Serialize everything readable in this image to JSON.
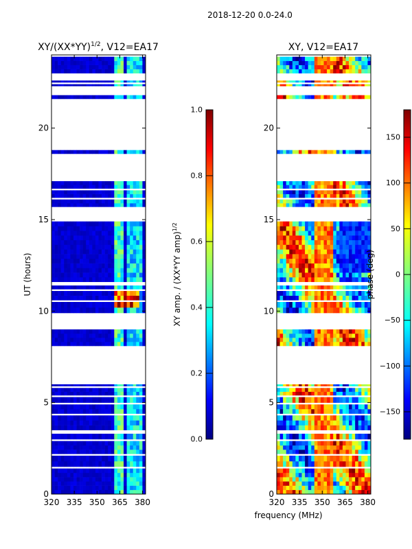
{
  "suptitle": "2018-12-20 0.0-24.0",
  "xlabel_shared": "frequency (MHz)",
  "chart_data": [
    {
      "type": "heatmap",
      "title_main": "XY/(XX*YY)",
      "title_sup": "1/2",
      "title_tail": ", V12=EA17",
      "xlabel": "frequency (MHz)",
      "ylabel": "UT (hours)",
      "xlim": [
        320,
        382
      ],
      "ylim": [
        0,
        24
      ],
      "xticks": [
        320,
        335,
        350,
        365,
        380
      ],
      "yticks": [
        0,
        5,
        10,
        15,
        20
      ],
      "colorbar": {
        "label_main": "XY amp. / (XX*YY amp)",
        "label_sup": "1/2",
        "range": [
          0.0,
          1.0
        ],
        "ticks": [
          "0.0",
          "0.2",
          "0.4",
          "0.6",
          "0.8",
          "1.0"
        ]
      },
      "data_summary": "Mostly near 0 (dark blue); elevated 0.3-0.5 in bands near 362-368 and 370-380 MHz; peaks 0.8-1.0 around 10.5-11.0 UT"
    },
    {
      "type": "heatmap",
      "title_main": "XY, V12=EA17",
      "xlabel": "frequency (MHz)",
      "ylabel": "",
      "xlim": [
        320,
        382
      ],
      "ylim": [
        0,
        24
      ],
      "xticks": [
        320,
        335,
        350,
        365,
        380
      ],
      "yticks": [
        0,
        5,
        10,
        15,
        20
      ],
      "colorbar": {
        "label_main": "phase (deg)",
        "range": [
          -180,
          180
        ],
        "ticks": [
          "-150",
          "-100",
          "-50",
          "0",
          "50",
          "100",
          "150"
        ]
      },
      "data_summary": "Phase varies across full -180 to 180 range; orange/red (~100) band near 345-358 MHz; blue (~-150) regions at high frequency 12-15 UT"
    }
  ],
  "time_segments": [
    [
      0.0,
      1.4
    ],
    [
      1.5,
      2.1
    ],
    [
      2.2,
      2.9
    ],
    [
      3.0,
      3.3
    ],
    [
      3.5,
      4.3
    ],
    [
      4.4,
      4.9
    ],
    [
      5.0,
      5.3
    ],
    [
      5.4,
      5.8
    ],
    [
      5.9,
      6.0
    ],
    [
      8.1,
      9.0
    ],
    [
      9.9,
      10.5
    ],
    [
      10.6,
      11.1
    ],
    [
      11.2,
      11.4
    ],
    [
      11.6,
      14.9
    ],
    [
      15.7,
      16.1
    ],
    [
      16.2,
      16.6
    ],
    [
      16.7,
      17.1
    ],
    [
      18.6,
      18.8
    ],
    [
      21.6,
      21.8
    ],
    [
      22.3,
      22.4
    ],
    [
      22.5,
      22.6
    ],
    [
      23.0,
      23.9
    ]
  ]
}
